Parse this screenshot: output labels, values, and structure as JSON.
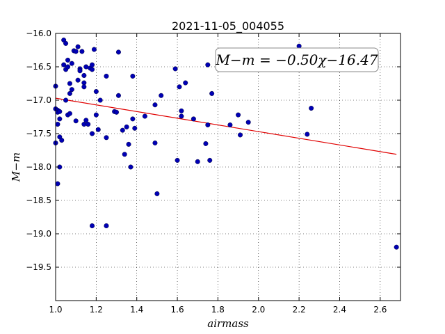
{
  "chart_data": {
    "type": "scatter",
    "title": "2021-11-05_004055",
    "xlabel": "airmass",
    "ylabel": "M−m",
    "xlim": [
      1.0,
      2.7
    ],
    "ylim": [
      -16.0,
      -20.0
    ],
    "y_inverted": true,
    "grid": true,
    "xticks": [
      1.0,
      1.2,
      1.4,
      1.6,
      1.8,
      2.0,
      2.2,
      2.4,
      2.6
    ],
    "xtick_labels": [
      "1.0",
      "1.2",
      "1.4",
      "1.6",
      "1.8",
      "2.0",
      "2.2",
      "2.4",
      "2.6"
    ],
    "yticks": [
      -16.0,
      -16.5,
      -17.0,
      -17.5,
      -18.0,
      -18.5,
      -19.0,
      -19.5
    ],
    "ytick_labels": [
      "−16.0",
      "−16.5",
      "−17.0",
      "−17.5",
      "−18.0",
      "−18.5",
      "−19.0",
      "−19.5"
    ],
    "annotation": "M−m = −0.50χ−16.47",
    "point_color": "#0000b4",
    "fit_color": "#e00000",
    "fit": {
      "slope": -0.5,
      "intercept": -16.47,
      "x_range": [
        1.0,
        2.68
      ]
    },
    "points": [
      [
        1.0,
        -16.79
      ],
      [
        1.0,
        -17.13
      ],
      [
        1.0,
        -17.64
      ],
      [
        1.01,
        -18.25
      ],
      [
        1.01,
        -17.36
      ],
      [
        1.01,
        -17.15
      ],
      [
        1.01,
        -17.18
      ],
      [
        1.02,
        -17.28
      ],
      [
        1.02,
        -17.55
      ],
      [
        1.02,
        -17.17
      ],
      [
        1.02,
        -18.0
      ],
      [
        1.03,
        -17.6
      ],
      [
        1.04,
        -16.47
      ],
      [
        1.04,
        -16.1
      ],
      [
        1.05,
        -16.15
      ],
      [
        1.05,
        -16.54
      ],
      [
        1.05,
        -17.0
      ],
      [
        1.06,
        -17.22
      ],
      [
        1.06,
        -16.4
      ],
      [
        1.06,
        -16.5
      ],
      [
        1.07,
        -16.75
      ],
      [
        1.07,
        -16.9
      ],
      [
        1.07,
        -17.2
      ],
      [
        1.08,
        -16.45
      ],
      [
        1.08,
        -16.84
      ],
      [
        1.09,
        -16.26
      ],
      [
        1.1,
        -16.27
      ],
      [
        1.1,
        -17.31
      ],
      [
        1.11,
        -16.2
      ],
      [
        1.11,
        -16.7
      ],
      [
        1.12,
        -16.53
      ],
      [
        1.12,
        -16.56
      ],
      [
        1.13,
        -16.27
      ],
      [
        1.14,
        -16.74
      ],
      [
        1.14,
        -16.8
      ],
      [
        1.14,
        -16.63
      ],
      [
        1.14,
        -17.36
      ],
      [
        1.15,
        -16.5
      ],
      [
        1.15,
        -17.3
      ],
      [
        1.16,
        -17.36
      ],
      [
        1.17,
        -16.52
      ],
      [
        1.18,
        -16.47
      ],
      [
        1.18,
        -16.54
      ],
      [
        1.18,
        -17.5
      ],
      [
        1.18,
        -18.88
      ],
      [
        1.19,
        -16.24
      ],
      [
        1.2,
        -16.87
      ],
      [
        1.2,
        -17.22
      ],
      [
        1.21,
        -17.44
      ],
      [
        1.22,
        -17.0
      ],
      [
        1.25,
        -16.64
      ],
      [
        1.25,
        -17.56
      ],
      [
        1.25,
        -18.88
      ],
      [
        1.29,
        -17.17
      ],
      [
        1.3,
        -17.18
      ],
      [
        1.31,
        -16.28
      ],
      [
        1.31,
        -16.93
      ],
      [
        1.33,
        -17.45
      ],
      [
        1.34,
        -17.81
      ],
      [
        1.35,
        -17.4
      ],
      [
        1.36,
        -17.66
      ],
      [
        1.37,
        -18.0
      ],
      [
        1.38,
        -16.64
      ],
      [
        1.38,
        -17.28
      ],
      [
        1.39,
        -17.42
      ],
      [
        1.44,
        -17.24
      ],
      [
        1.49,
        -17.64
      ],
      [
        1.49,
        -17.07
      ],
      [
        1.5,
        -18.4
      ],
      [
        1.52,
        -16.93
      ],
      [
        1.59,
        -16.53
      ],
      [
        1.6,
        -17.9
      ],
      [
        1.61,
        -16.8
      ],
      [
        1.62,
        -17.16
      ],
      [
        1.62,
        -17.24
      ],
      [
        1.64,
        -16.74
      ],
      [
        1.68,
        -17.28
      ],
      [
        1.7,
        -17.92
      ],
      [
        1.74,
        -17.65
      ],
      [
        1.75,
        -16.47
      ],
      [
        1.75,
        -17.37
      ],
      [
        1.76,
        -17.9
      ],
      [
        1.77,
        -16.9
      ],
      [
        1.86,
        -17.37
      ],
      [
        1.9,
        -17.22
      ],
      [
        1.91,
        -17.52
      ],
      [
        1.95,
        -17.33
      ],
      [
        2.2,
        -16.19
      ],
      [
        2.24,
        -17.51
      ],
      [
        2.26,
        -17.12
      ],
      [
        2.68,
        -19.2
      ]
    ]
  }
}
